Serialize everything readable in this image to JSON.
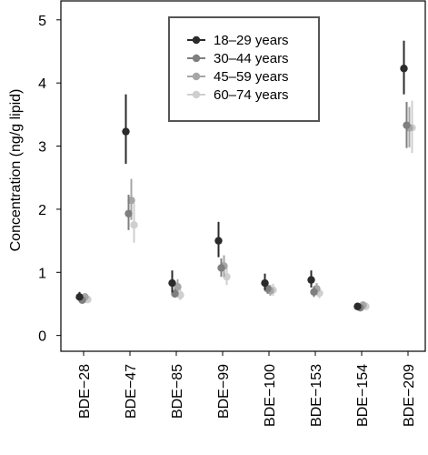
{
  "chart_data": {
    "type": "scatter",
    "title": "",
    "xlabel": "",
    "ylabel": "Concentration (ng/g lipid)",
    "categories": [
      "BDE−28",
      "BDE−47",
      "BDE−85",
      "BDE−99",
      "BDE−100",
      "BDE−153",
      "BDE−154",
      "BDE−209"
    ],
    "yticks": [
      "0",
      "1",
      "2",
      "3",
      "4",
      "5"
    ],
    "ylim": [
      -0.25,
      5.3
    ],
    "grid": false,
    "legend": {
      "placement": "top-center",
      "visible_entries": 4
    },
    "error_bars": true,
    "series": [
      {
        "name": "18–29 years",
        "color": "#2b2b2b",
        "values": [
          0.61,
          3.23,
          0.83,
          1.5,
          0.83,
          0.88,
          0.46,
          4.23
        ],
        "lower": [
          0.55,
          2.72,
          0.68,
          1.24,
          0.72,
          0.76,
          0.42,
          3.82
        ],
        "upper": [
          0.69,
          3.82,
          1.03,
          1.8,
          0.98,
          1.03,
          0.51,
          4.67
        ]
      },
      {
        "name": "30–44 years",
        "color": "#7f7f7f",
        "values": [
          0.56,
          1.93,
          0.66,
          1.07,
          0.74,
          0.69,
          0.44,
          3.33
        ],
        "lower": [
          0.51,
          1.67,
          0.6,
          0.93,
          0.66,
          0.61,
          0.41,
          2.97
        ],
        "upper": [
          0.62,
          2.23,
          0.74,
          1.22,
          0.82,
          0.78,
          0.48,
          3.7
        ]
      },
      {
        "name": "45–59 years",
        "color": "#a6a6a6",
        "values": [
          0.61,
          2.14,
          0.77,
          1.1,
          0.71,
          0.74,
          0.48,
          3.29
        ],
        "lower": [
          0.55,
          1.83,
          0.67,
          0.93,
          0.63,
          0.65,
          0.44,
          2.98
        ],
        "upper": [
          0.67,
          2.48,
          0.89,
          1.27,
          0.8,
          0.83,
          0.52,
          3.62
        ]
      },
      {
        "name": "60–74 years",
        "color": "#cfcfcf",
        "values": [
          0.57,
          1.75,
          0.64,
          0.93,
          0.72,
          0.67,
          0.46,
          3.29
        ],
        "lower": [
          0.52,
          1.47,
          0.56,
          0.8,
          0.63,
          0.59,
          0.42,
          2.89
        ],
        "upper": [
          0.62,
          2.1,
          0.73,
          1.08,
          0.82,
          0.76,
          0.5,
          3.72
        ]
      }
    ]
  }
}
